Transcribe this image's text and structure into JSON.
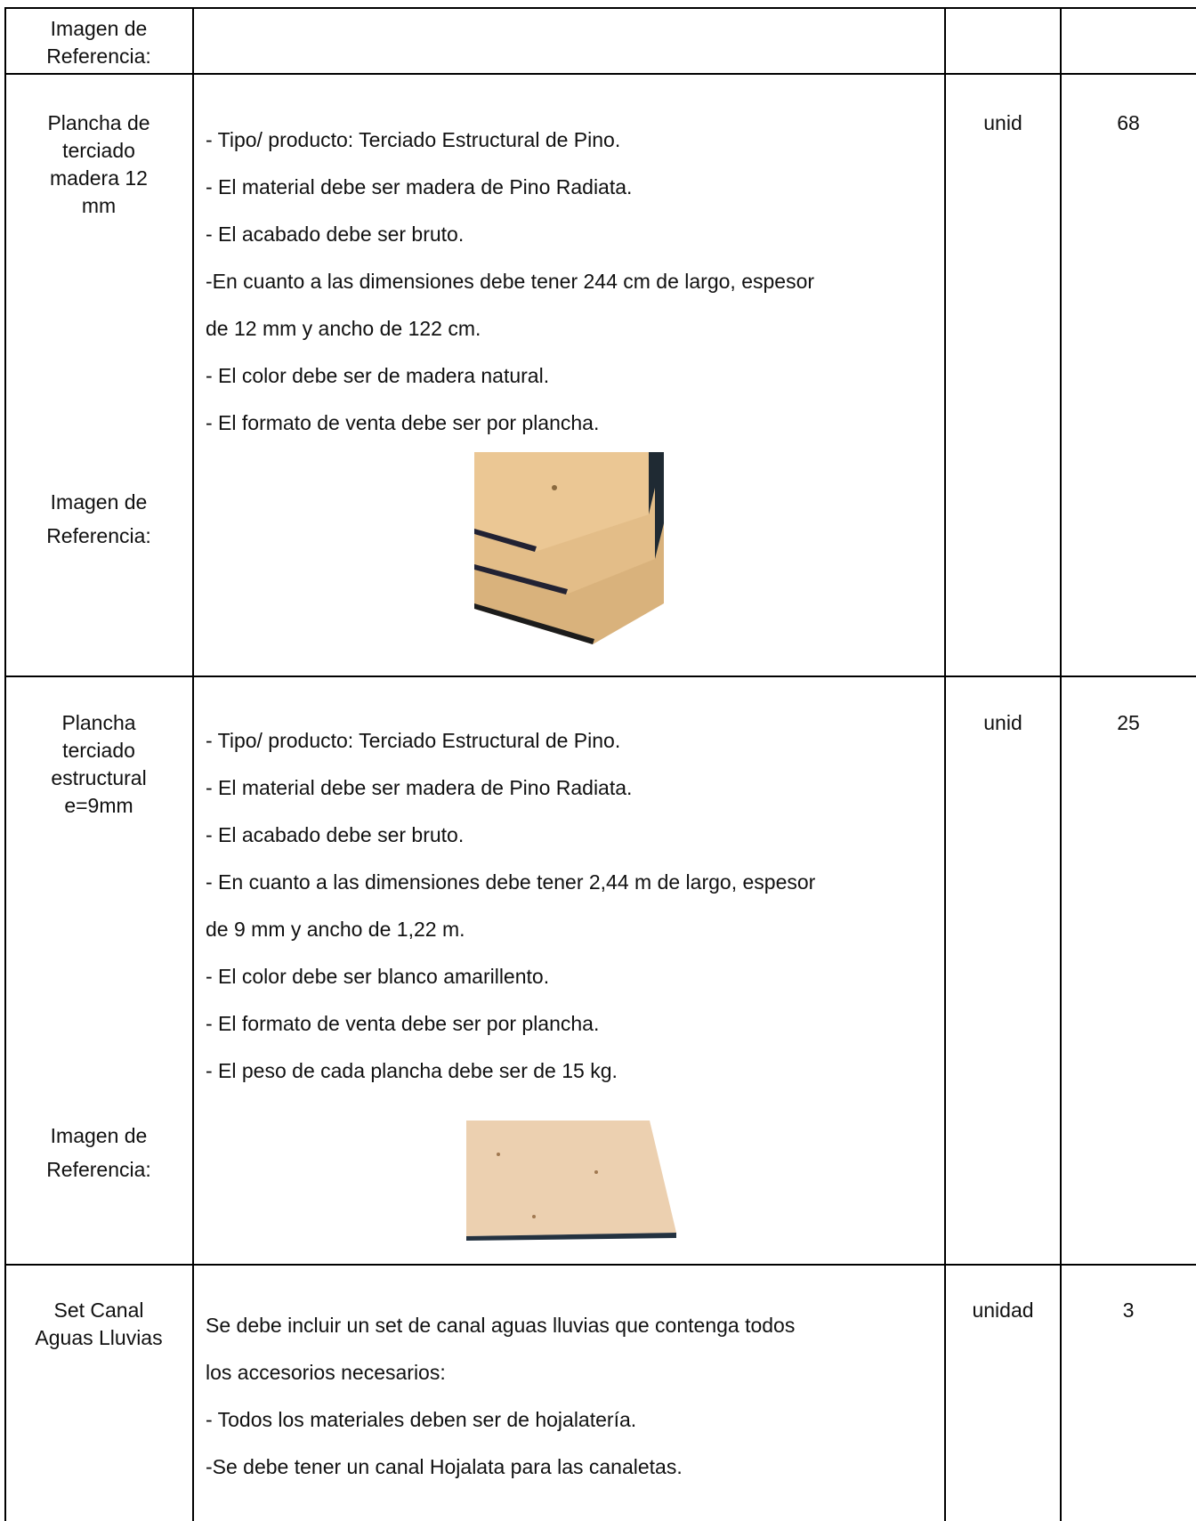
{
  "table": {
    "rows": [
      {
        "name": [
          "Imagen de",
          "Referencia:"
        ]
      },
      {
        "name": [
          "Plancha de",
          "terciado",
          "madera 12",
          "mm"
        ],
        "description": [
          "- Tipo/ producto: Terciado Estructural de Pino.",
          "- El material debe ser madera de Pino Radiata.",
          "- El acabado debe ser bruto.",
          "-En cuanto a las dimensiones debe tener 244 cm de largo, espesor",
          "de 12 mm y ancho de 122 cm.",
          "- El color debe ser de madera natural.",
          "- El formato de venta debe ser por plancha."
        ],
        "ref_label": [
          "Imagen de",
          "Referencia:"
        ],
        "unit": "unid",
        "quantity": 68
      },
      {
        "name": [
          "Plancha",
          "terciado",
          "estructural",
          "e=9mm"
        ],
        "description": [
          "- Tipo/ producto: Terciado Estructural de Pino.",
          "- El material debe ser madera de Pino Radiata.",
          "- El acabado debe ser bruto.",
          "- En cuanto a las dimensiones debe tener 2,44 m de largo, espesor",
          "de 9 mm y ancho de 1,22 m.",
          "- El color debe ser blanco amarillento.",
          "- El formato de venta debe ser por plancha.",
          "- El peso de cada plancha debe ser de 15 kg."
        ],
        "ref_label": [
          "Imagen de",
          "Referencia:"
        ],
        "unit": "unid",
        "quantity": 25
      },
      {
        "name": [
          "Set Canal",
          "Aguas Lluvias"
        ],
        "description": [
          "Se debe incluir un set de canal aguas lluvias que contenga todos",
          "los accesorios necesarios:",
          "- Todos los materiales deben ser de hojalatería.",
          "-Se debe tener un canal Hojalata para las canaletas."
        ],
        "unit": "unidad",
        "quantity": 3
      }
    ]
  }
}
